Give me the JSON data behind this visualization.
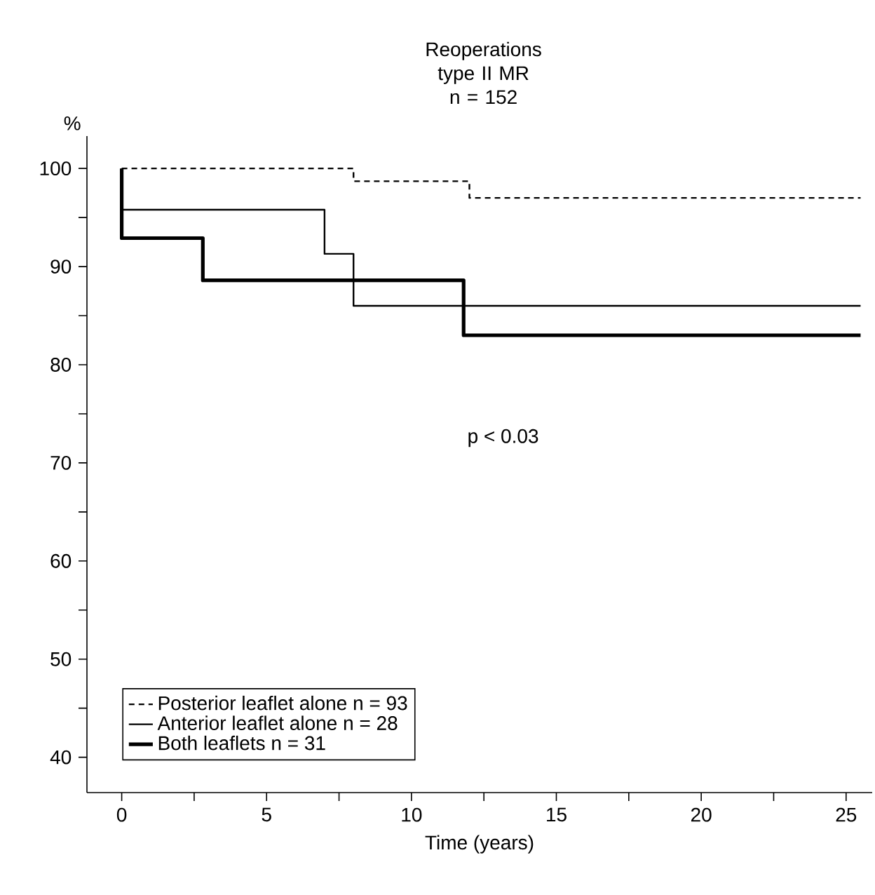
{
  "chart_data": {
    "type": "step",
    "title": "Reoperations type II MR",
    "subtitle": "n = 152",
    "xlabel": "Time (years)",
    "ylabel": "%",
    "annotations": [
      "p < 0.03"
    ],
    "series": [
      {
        "name": "Posterior leaflet alone n = 93",
        "color": "#000000",
        "line_style": "dashed",
        "x": [
          0,
          8,
          12,
          25.5
        ],
        "values": [
          100,
          98.7,
          97,
          97
        ]
      },
      {
        "name": "Anterior leaflet alone n = 28",
        "color": "#000000",
        "line_style": "solid",
        "x": [
          0,
          0,
          7,
          8,
          25.5
        ],
        "values": [
          100,
          95.8,
          91.3,
          86,
          86
        ]
      },
      {
        "name": "Both leaflets n = 31",
        "color": "#000000",
        "line_style": "solid",
        "x": [
          0,
          0,
          2.8,
          11.8,
          25.5
        ],
        "values": [
          100,
          92.9,
          88.6,
          83,
          83
        ]
      }
    ],
    "xlim": [
      -1.2,
      25.9
    ],
    "ylim": [
      36.4,
      103.3
    ],
    "xticks": [
      0,
      {
        "value": 2.5,
        "label": null
      },
      5,
      {
        "value": 7.5,
        "label": null
      },
      10,
      {
        "value": 12.5,
        "label": null
      },
      15,
      {
        "value": 17.5,
        "label": null
      },
      20,
      {
        "value": 22.5,
        "label": null
      },
      25
    ],
    "yticks": [
      40,
      {
        "value": 45,
        "label": null
      },
      50,
      {
        "value": 55,
        "label": null
      },
      60,
      {
        "value": 65,
        "label": null
      },
      70,
      {
        "value": 75,
        "label": null
      },
      80,
      {
        "value": 85,
        "label": null
      },
      90,
      {
        "value": 95,
        "label": null
      },
      100
    ],
    "grid": false,
    "legend": "bottom left",
    "marker": "none"
  }
}
